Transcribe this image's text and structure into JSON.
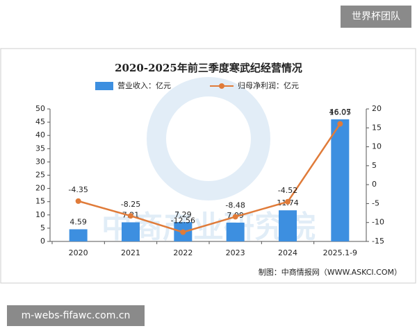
{
  "overlay": {
    "top_right": "世界杯团队",
    "bottom_left": "m-webs-fifawc.com.cn"
  },
  "chart_data": {
    "type": "bar",
    "title": "2020-2025年前三季度寒武纪经营情况",
    "watermark": "中商产业研究院",
    "source": "制图：中商情报网（WWW.ASKCI.COM）",
    "categories": [
      "2020",
      "2021",
      "2022",
      "2023",
      "2024",
      "2025.1-9"
    ],
    "series": [
      {
        "name": "营业收入：亿元",
        "type": "bar",
        "color": "#3d8fe0",
        "values": [
          4.59,
          7.21,
          7.29,
          7.09,
          11.74,
          46.07
        ]
      },
      {
        "name": "归母净利润：亿元",
        "type": "line",
        "axis": "y2",
        "color": "#e07b39",
        "values": [
          -4.35,
          -8.25,
          -12.56,
          -8.48,
          -4.52,
          16.05
        ]
      }
    ],
    "ylim": [
      0,
      50
    ],
    "yticks": [
      0,
      5,
      10,
      15,
      20,
      25,
      30,
      35,
      40,
      45,
      50
    ],
    "y2lim": [
      -15,
      20
    ],
    "y2ticks": [
      -15,
      -10,
      -5,
      0,
      5,
      10,
      15,
      20
    ]
  }
}
